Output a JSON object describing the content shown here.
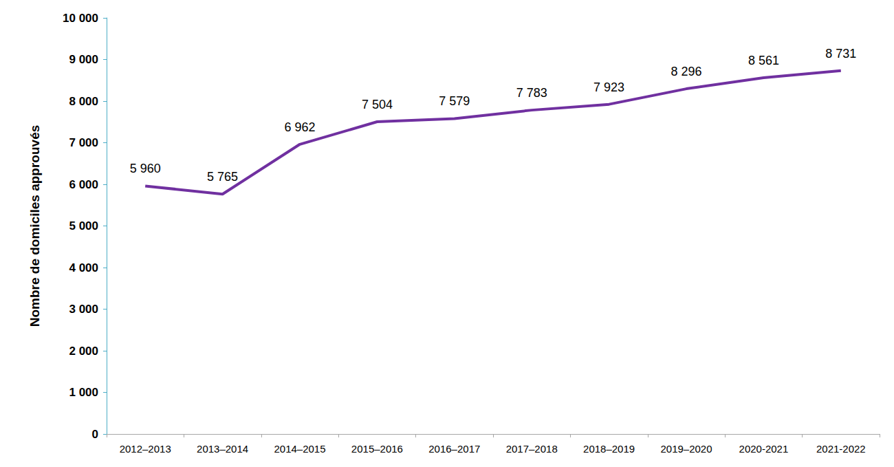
{
  "chart_data": {
    "type": "line",
    "y_label": "Nombre de domiciles approuvés",
    "categories": [
      "2012–2013",
      "2013–2014",
      "2014–2015",
      "2015–2016",
      "2016–2017",
      "2017–2018",
      "2018–2019",
      "2019–2020",
      "2020-2021",
      "2021-2022"
    ],
    "values": [
      5960,
      5765,
      6962,
      7504,
      7579,
      7783,
      7923,
      8296,
      8561,
      8731
    ],
    "value_labels": [
      "5 960",
      "5 765",
      "6 962",
      "7 504",
      "7 579",
      "7 783",
      "7 923",
      "8 296",
      "8 561",
      "8 731"
    ],
    "color": "#7030a0",
    "ylim": [
      0,
      10000
    ],
    "yticks": [
      0,
      {
        "value": 1000,
        "label": "1 000"
      },
      {
        "value": 2000,
        "label": "2 000"
      },
      {
        "value": 3000,
        "label": "3 000"
      },
      {
        "value": 4000,
        "label": "4 000"
      },
      {
        "value": 5000,
        "label": "5 000"
      },
      {
        "value": 6000,
        "label": "6 000"
      },
      {
        "value": 7000,
        "label": "7 000"
      },
      {
        "value": 8000,
        "label": "8 000"
      },
      {
        "value": 9000,
        "label": "9 000"
      },
      {
        "value": 10000,
        "label": "10 000"
      }
    ],
    "grid": false,
    "data_labels": true
  }
}
